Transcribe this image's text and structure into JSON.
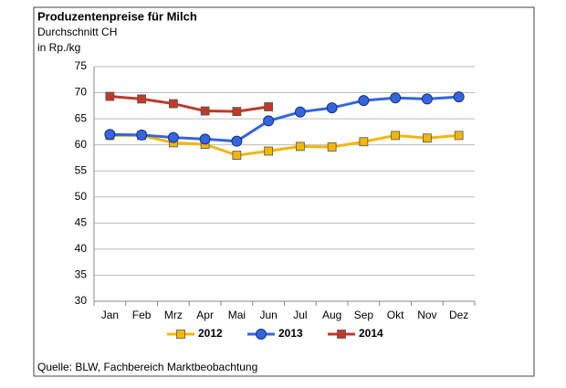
{
  "chart_data": {
    "type": "line",
    "title": "Produzentenpreise für Milch",
    "subtitle": "Durchschnitt CH",
    "y_label": "in Rp./kg",
    "source": "Quelle: BLW, Fachbereich Marktbeobachtung",
    "categories": [
      "Jan",
      "Feb",
      "Mrz",
      "Apr",
      "Mai",
      "Jun",
      "Jul",
      "Aug",
      "Sep",
      "Okt",
      "Nov",
      "Dez"
    ],
    "series": [
      {
        "name": "2012",
        "color": "#f2b705",
        "marker": "square",
        "values": [
          61.8,
          61.8,
          60.4,
          60.1,
          58.0,
          58.8,
          59.7,
          59.6,
          60.6,
          61.8,
          61.3,
          61.8
        ]
      },
      {
        "name": "2013",
        "color": "#3366dd",
        "marker": "circle",
        "values": [
          62.0,
          61.9,
          61.4,
          61.1,
          60.7,
          64.6,
          66.3,
          67.1,
          68.5,
          69.0,
          68.8,
          69.2
        ]
      },
      {
        "name": "2014",
        "color": "#c0392b",
        "marker": "square",
        "values": [
          69.3,
          68.8,
          67.9,
          66.5,
          66.4,
          67.3,
          null,
          null,
          null,
          null,
          null,
          null
        ]
      }
    ],
    "ylim": [
      30,
      75
    ],
    "yticks": [
      30,
      35,
      40,
      45,
      50,
      55,
      60,
      65,
      70,
      75
    ],
    "grid": true,
    "legend": "bottom"
  }
}
